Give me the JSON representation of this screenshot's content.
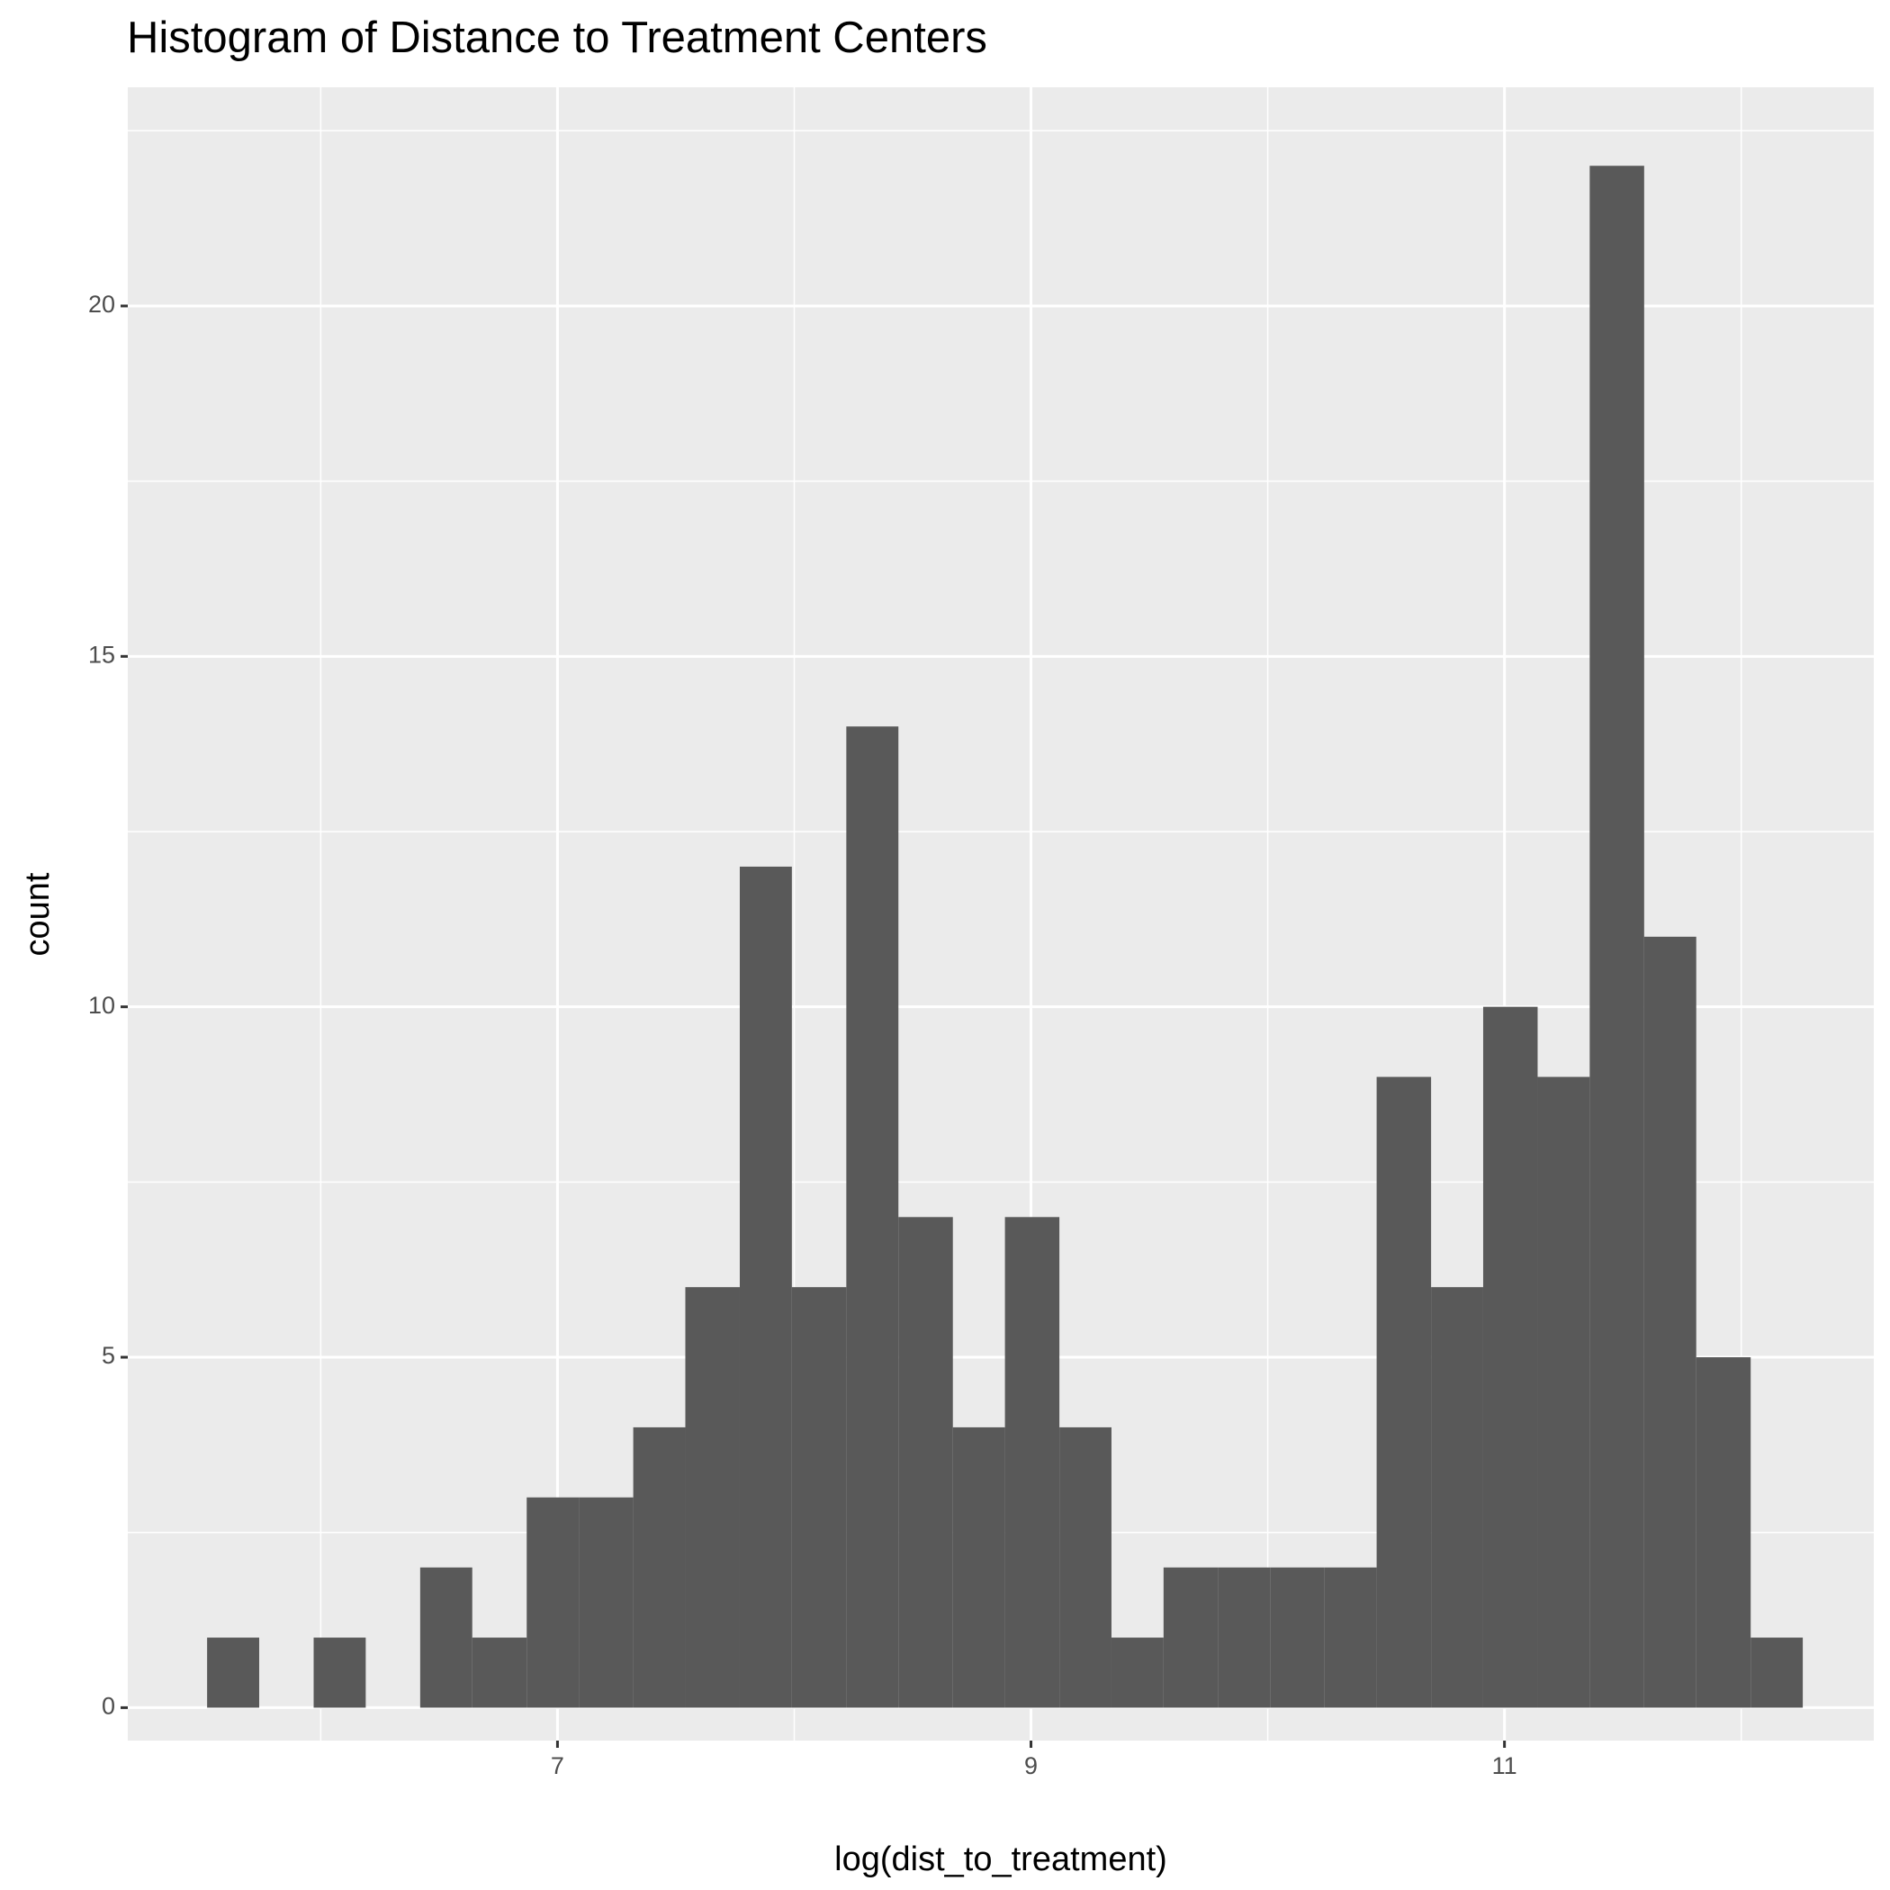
{
  "chart_data": {
    "type": "histogram",
    "title": "Histogram of Distance to Treatment Centers",
    "x_label": "log(dist_to_treatment)",
    "y_label": "count",
    "bins": [
      5.52,
      5.74,
      5.97,
      6.19,
      6.42,
      6.64,
      6.87,
      7.09,
      7.32,
      7.54,
      7.77,
      7.99,
      8.22,
      8.44,
      8.67,
      8.89,
      9.12,
      9.34,
      9.56,
      9.79,
      10.01,
      10.24,
      10.46,
      10.69,
      10.91,
      11.14,
      11.36,
      11.59,
      11.81,
      12.04,
      12.26
    ],
    "values": [
      1,
      0,
      1,
      0,
      2,
      1,
      3,
      3,
      4,
      6,
      12,
      6,
      14,
      7,
      4,
      7,
      4,
      1,
      2,
      2,
      2,
      2,
      9,
      6,
      10,
      9,
      22,
      11,
      5,
      1
    ],
    "color": "#595959",
    "xlim": [
      5.185,
      12.56
    ],
    "xticks": [
      7,
      9,
      11
    ],
    "x_minor_ticks": [
      6,
      8,
      10,
      12
    ],
    "ylim": [
      -0.47,
      23.12
    ],
    "yticks": [
      0,
      5,
      10,
      15,
      20
    ],
    "y_minor_ticks": [
      2.5,
      7.5,
      12.5,
      17.5,
      22.5
    ],
    "grid": true
  }
}
